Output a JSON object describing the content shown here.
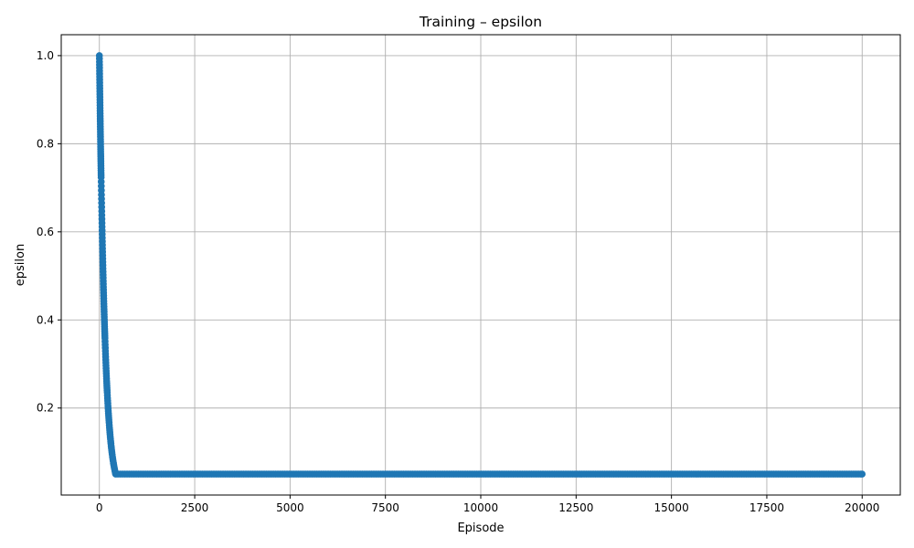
{
  "chart_data": {
    "type": "line",
    "title": "Training – epsilon",
    "xlabel": "Episode",
    "ylabel": "epsilon",
    "xlim": [
      -1000,
      21000
    ],
    "ylim": [
      0.0025,
      1.0475
    ],
    "xticks": [
      0,
      2500,
      5000,
      7500,
      10000,
      12500,
      15000,
      17500,
      20000
    ],
    "yticks": [
      0.2,
      0.4,
      0.6,
      0.8,
      1.0
    ],
    "ytick_labels": [
      "0.2",
      "0.4",
      "0.6",
      "0.8",
      "1.0"
    ],
    "grid": true,
    "marker": "circle",
    "colors": {
      "series": "#1f77b4",
      "grid": "#b0b0b0",
      "axis": "#000000"
    },
    "series": [
      {
        "decay_per_episode": 0.993,
        "start_value": 1.0,
        "min_value": 0.05,
        "episodes": 20000,
        "x": [
          0,
          25,
          50,
          75,
          100,
          125,
          150,
          175,
          200,
          225,
          250,
          275,
          300,
          325,
          350,
          375,
          400,
          425,
          450,
          500,
          1000,
          2500,
          5000,
          7500,
          10000,
          12500,
          15000,
          17500,
          20000
        ],
        "y": [
          1.0,
          0.839,
          0.704,
          0.591,
          0.495,
          0.416,
          0.349,
          0.292,
          0.245,
          0.206,
          0.173,
          0.145,
          0.122,
          0.102,
          0.086,
          0.072,
          0.06,
          0.05,
          0.05,
          0.05,
          0.05,
          0.05,
          0.05,
          0.05,
          0.05,
          0.05,
          0.05,
          0.05,
          0.05
        ]
      }
    ]
  }
}
